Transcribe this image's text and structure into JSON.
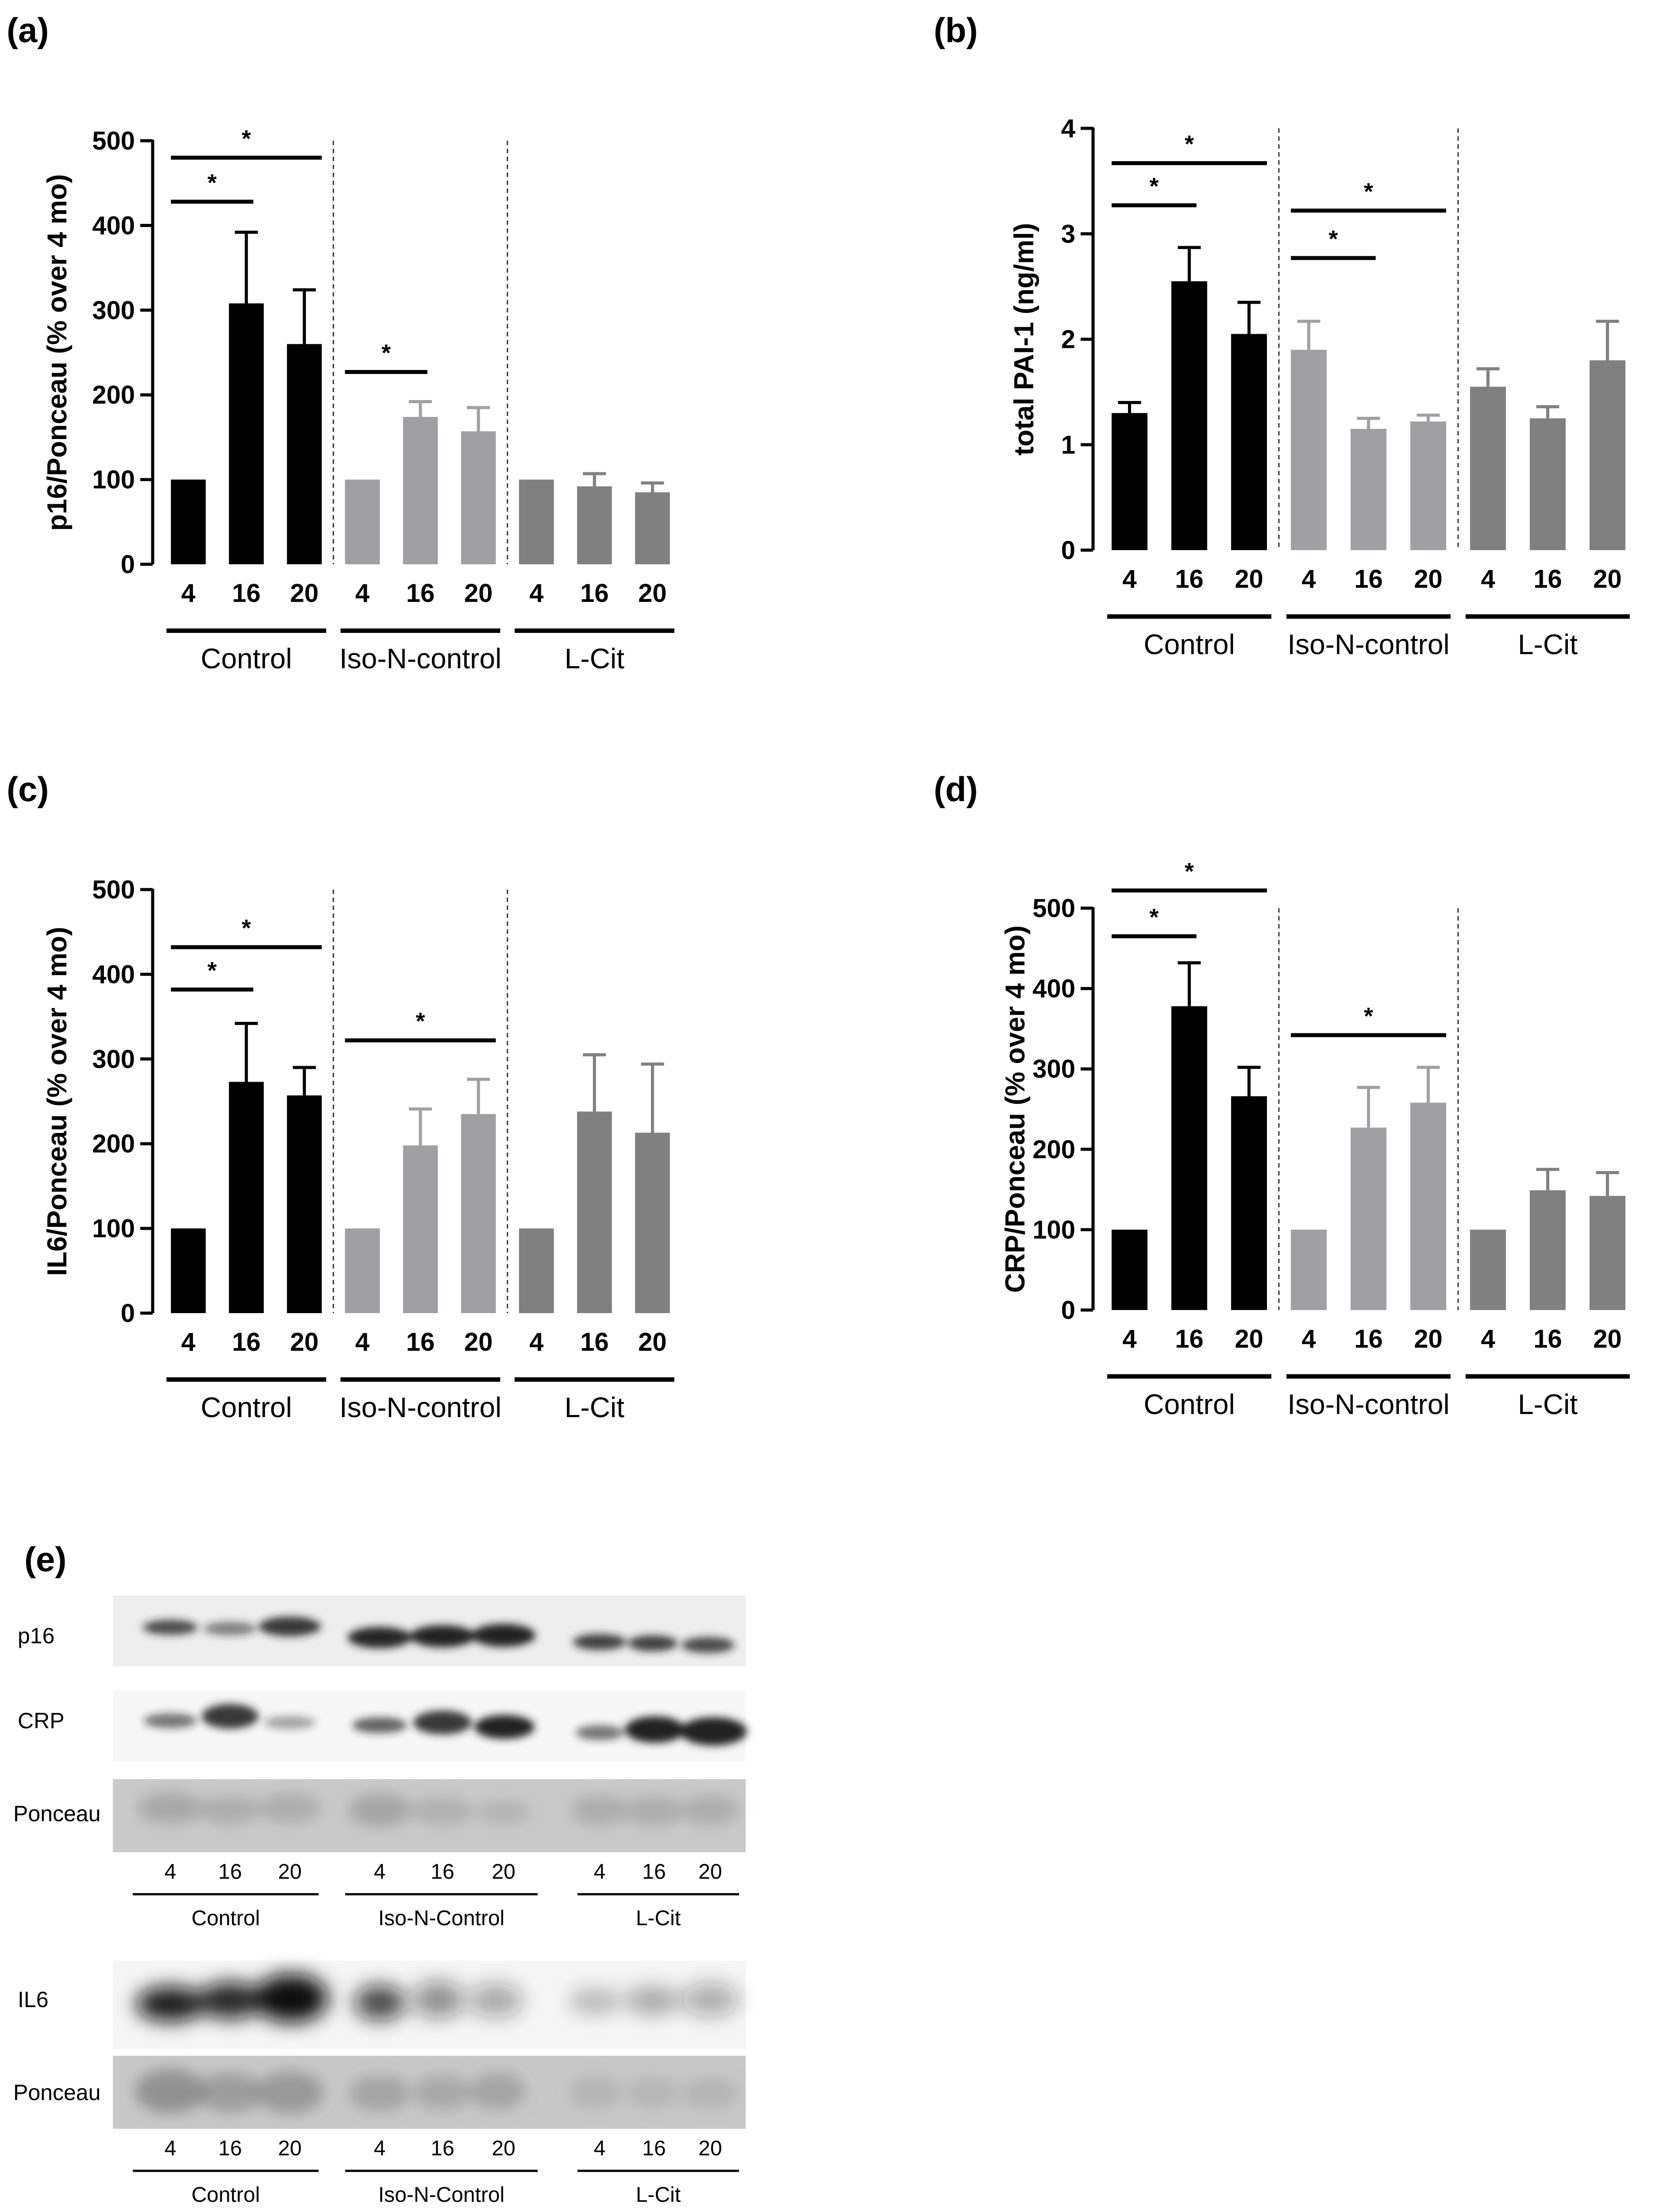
{
  "figure": {
    "panel_labels": [
      "(a)",
      "(b)",
      "(c)",
      "(d)",
      "(e)"
    ],
    "colors": {
      "Control": "#000000",
      "Iso-N-control": "#a0a0a2",
      "L-Cit": "#808080"
    }
  },
  "chart_data": [
    {
      "id": "a",
      "type": "bar",
      "ylabel": "p16/Ponceau (% over 4 mo)",
      "ylim": [
        0,
        500
      ],
      "yticks": [
        0,
        100,
        200,
        300,
        400,
        500
      ],
      "groups": [
        "Control",
        "Iso-N-control",
        "L-Cit"
      ],
      "categories": [
        "4",
        "16",
        "20"
      ],
      "series": [
        {
          "name": "Control",
          "values": [
            100,
            308,
            260
          ],
          "errors": [
            0,
            84,
            64
          ]
        },
        {
          "name": "Iso-N-control",
          "values": [
            100,
            174,
            157
          ],
          "errors": [
            0,
            18,
            28
          ]
        },
        {
          "name": "L-Cit",
          "values": [
            100,
            92,
            85
          ],
          "errors": [
            0,
            15,
            11
          ]
        }
      ],
      "significance": [
        {
          "group": 0,
          "from": 0,
          "to": 1,
          "y": 428,
          "label": "*"
        },
        {
          "group": 0,
          "from": 0,
          "to": 2,
          "y": 480,
          "label": "*"
        },
        {
          "group": 1,
          "from": 0,
          "to": 1,
          "y": 227,
          "label": "*"
        }
      ]
    },
    {
      "id": "b",
      "type": "bar",
      "ylabel": "total PAI-1 (ng/ml)",
      "ylim": [
        0,
        4
      ],
      "yticks": [
        0,
        1,
        2,
        3,
        4
      ],
      "groups": [
        "Control",
        "Iso-N-control",
        "L-Cit"
      ],
      "categories": [
        "4",
        "16",
        "20"
      ],
      "series": [
        {
          "name": "Control",
          "values": [
            1.3,
            2.55,
            2.05
          ],
          "errors": [
            0.1,
            0.32,
            0.3
          ]
        },
        {
          "name": "Iso-N-control",
          "values": [
            1.9,
            1.15,
            1.22
          ],
          "errors": [
            0.27,
            0.1,
            0.06
          ]
        },
        {
          "name": "L-Cit",
          "values": [
            1.55,
            1.25,
            1.8
          ],
          "errors": [
            0.17,
            0.11,
            0.37
          ]
        }
      ],
      "significance": [
        {
          "group": 0,
          "from": 0,
          "to": 1,
          "y": 3.27,
          "label": "*"
        },
        {
          "group": 0,
          "from": 0,
          "to": 2,
          "y": 3.67,
          "label": "*"
        },
        {
          "group": 1,
          "from": 0,
          "to": 1,
          "y": 2.77,
          "label": "*"
        },
        {
          "group": 1,
          "from": 0,
          "to": 2,
          "y": 3.22,
          "label": "*"
        }
      ]
    },
    {
      "id": "c",
      "type": "bar",
      "ylabel": "IL6/Ponceau (% over 4 mo)",
      "ylim": [
        0,
        500
      ],
      "yticks": [
        0,
        100,
        200,
        300,
        400,
        500
      ],
      "groups": [
        "Control",
        "Iso-N-control",
        "L-Cit"
      ],
      "categories": [
        "4",
        "16",
        "20"
      ],
      "series": [
        {
          "name": "Control",
          "values": [
            100,
            273,
            257
          ],
          "errors": [
            0,
            69,
            33
          ]
        },
        {
          "name": "Iso-N-control",
          "values": [
            100,
            198,
            235
          ],
          "errors": [
            0,
            43,
            41
          ]
        },
        {
          "name": "L-Cit",
          "values": [
            100,
            238,
            213
          ],
          "errors": [
            0,
            67,
            81
          ]
        }
      ],
      "significance": [
        {
          "group": 0,
          "from": 0,
          "to": 1,
          "y": 382,
          "label": "*"
        },
        {
          "group": 0,
          "from": 0,
          "to": 2,
          "y": 432,
          "label": "*"
        },
        {
          "group": 1,
          "from": 0,
          "to": 2,
          "y": 322,
          "label": "*"
        }
      ]
    },
    {
      "id": "d",
      "type": "bar",
      "ylabel": "CRP/Ponceau (% over 4 mo)",
      "ylim": [
        0,
        500
      ],
      "yticks": [
        0,
        100,
        200,
        300,
        400,
        500
      ],
      "groups": [
        "Control",
        "Iso-N-control",
        "L-Cit"
      ],
      "categories": [
        "4",
        "16",
        "20"
      ],
      "series": [
        {
          "name": "Control",
          "values": [
            100,
            378,
            266
          ],
          "errors": [
            0,
            54,
            36
          ]
        },
        {
          "name": "Iso-N-control",
          "values": [
            100,
            227,
            258
          ],
          "errors": [
            0,
            50,
            44
          ]
        },
        {
          "name": "L-Cit",
          "values": [
            100,
            149,
            142
          ],
          "errors": [
            0,
            26,
            29
          ]
        }
      ],
      "significance": [
        {
          "group": 0,
          "from": 0,
          "to": 1,
          "y": 465,
          "label": "*"
        },
        {
          "group": 0,
          "from": 0,
          "to": 2,
          "y": 522,
          "label": "*"
        },
        {
          "group": 1,
          "from": 0,
          "to": 2,
          "y": 342,
          "label": "*"
        }
      ]
    }
  ],
  "blot": {
    "upper": {
      "rows": [
        "p16",
        "CRP",
        "Ponceau"
      ],
      "lanes": [
        "4",
        "16",
        "20",
        "4",
        "16",
        "20",
        "4",
        "16",
        "20"
      ],
      "groups": [
        "Control",
        "Iso-N-Control",
        "L-Cit"
      ]
    },
    "lower": {
      "rows": [
        "IL6",
        "Ponceau"
      ],
      "lanes": [
        "4",
        "16",
        "20",
        "4",
        "16",
        "20",
        "4",
        "16",
        "20"
      ],
      "groups": [
        "Control",
        "Iso-N-Control",
        "L-Cit"
      ]
    }
  }
}
